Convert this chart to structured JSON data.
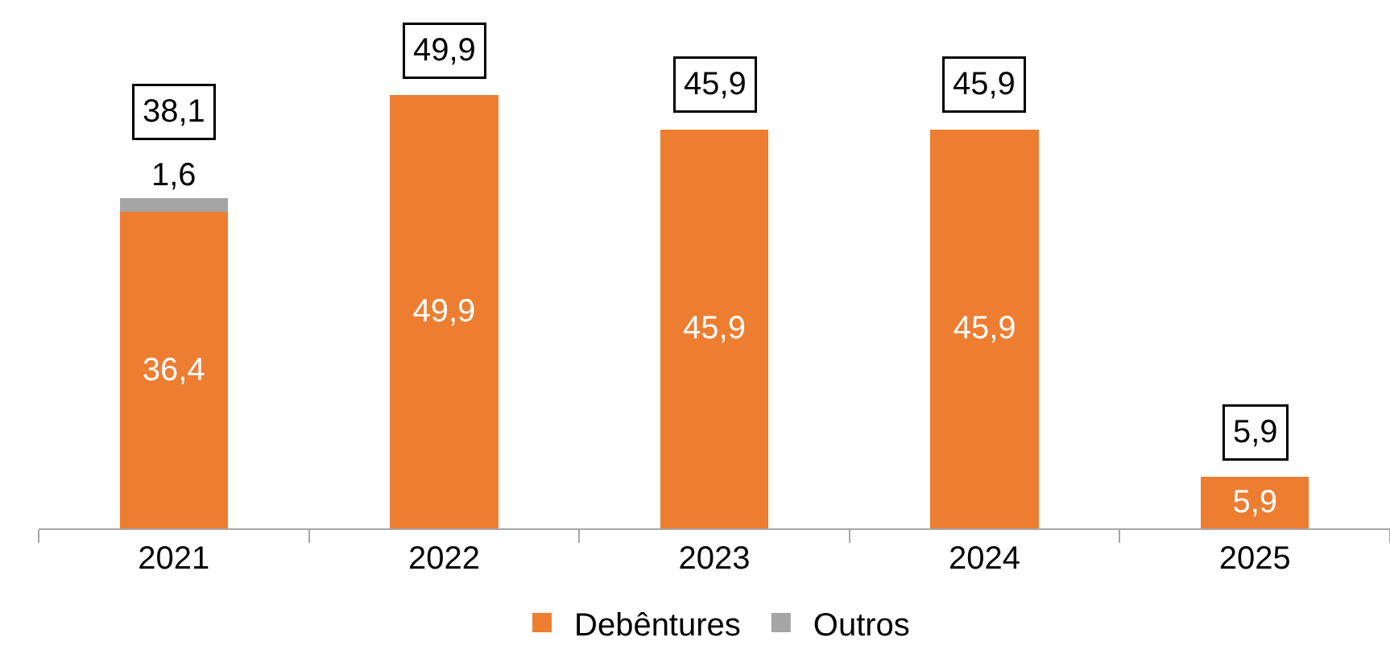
{
  "chart_data": {
    "type": "bar",
    "stacked": true,
    "categories": [
      "2021",
      "2022",
      "2023",
      "2024",
      "2025"
    ],
    "series": [
      {
        "name": "Debêntures",
        "color": "#ed7d31",
        "values": [
          36.4,
          49.9,
          45.9,
          45.9,
          5.9
        ],
        "value_labels": [
          "36,4",
          "49,9",
          "45,9",
          "45,9",
          "5,9"
        ]
      },
      {
        "name": "Outros",
        "color": "#a5a5a5",
        "values": [
          1.6,
          null,
          null,
          null,
          null
        ],
        "value_labels": [
          "1,6",
          null,
          null,
          null,
          null
        ]
      }
    ],
    "totals": [
      "38,1",
      "49,9",
      "45,9",
      "45,9",
      "5,9"
    ],
    "legend": "bottom",
    "grid": false
  }
}
